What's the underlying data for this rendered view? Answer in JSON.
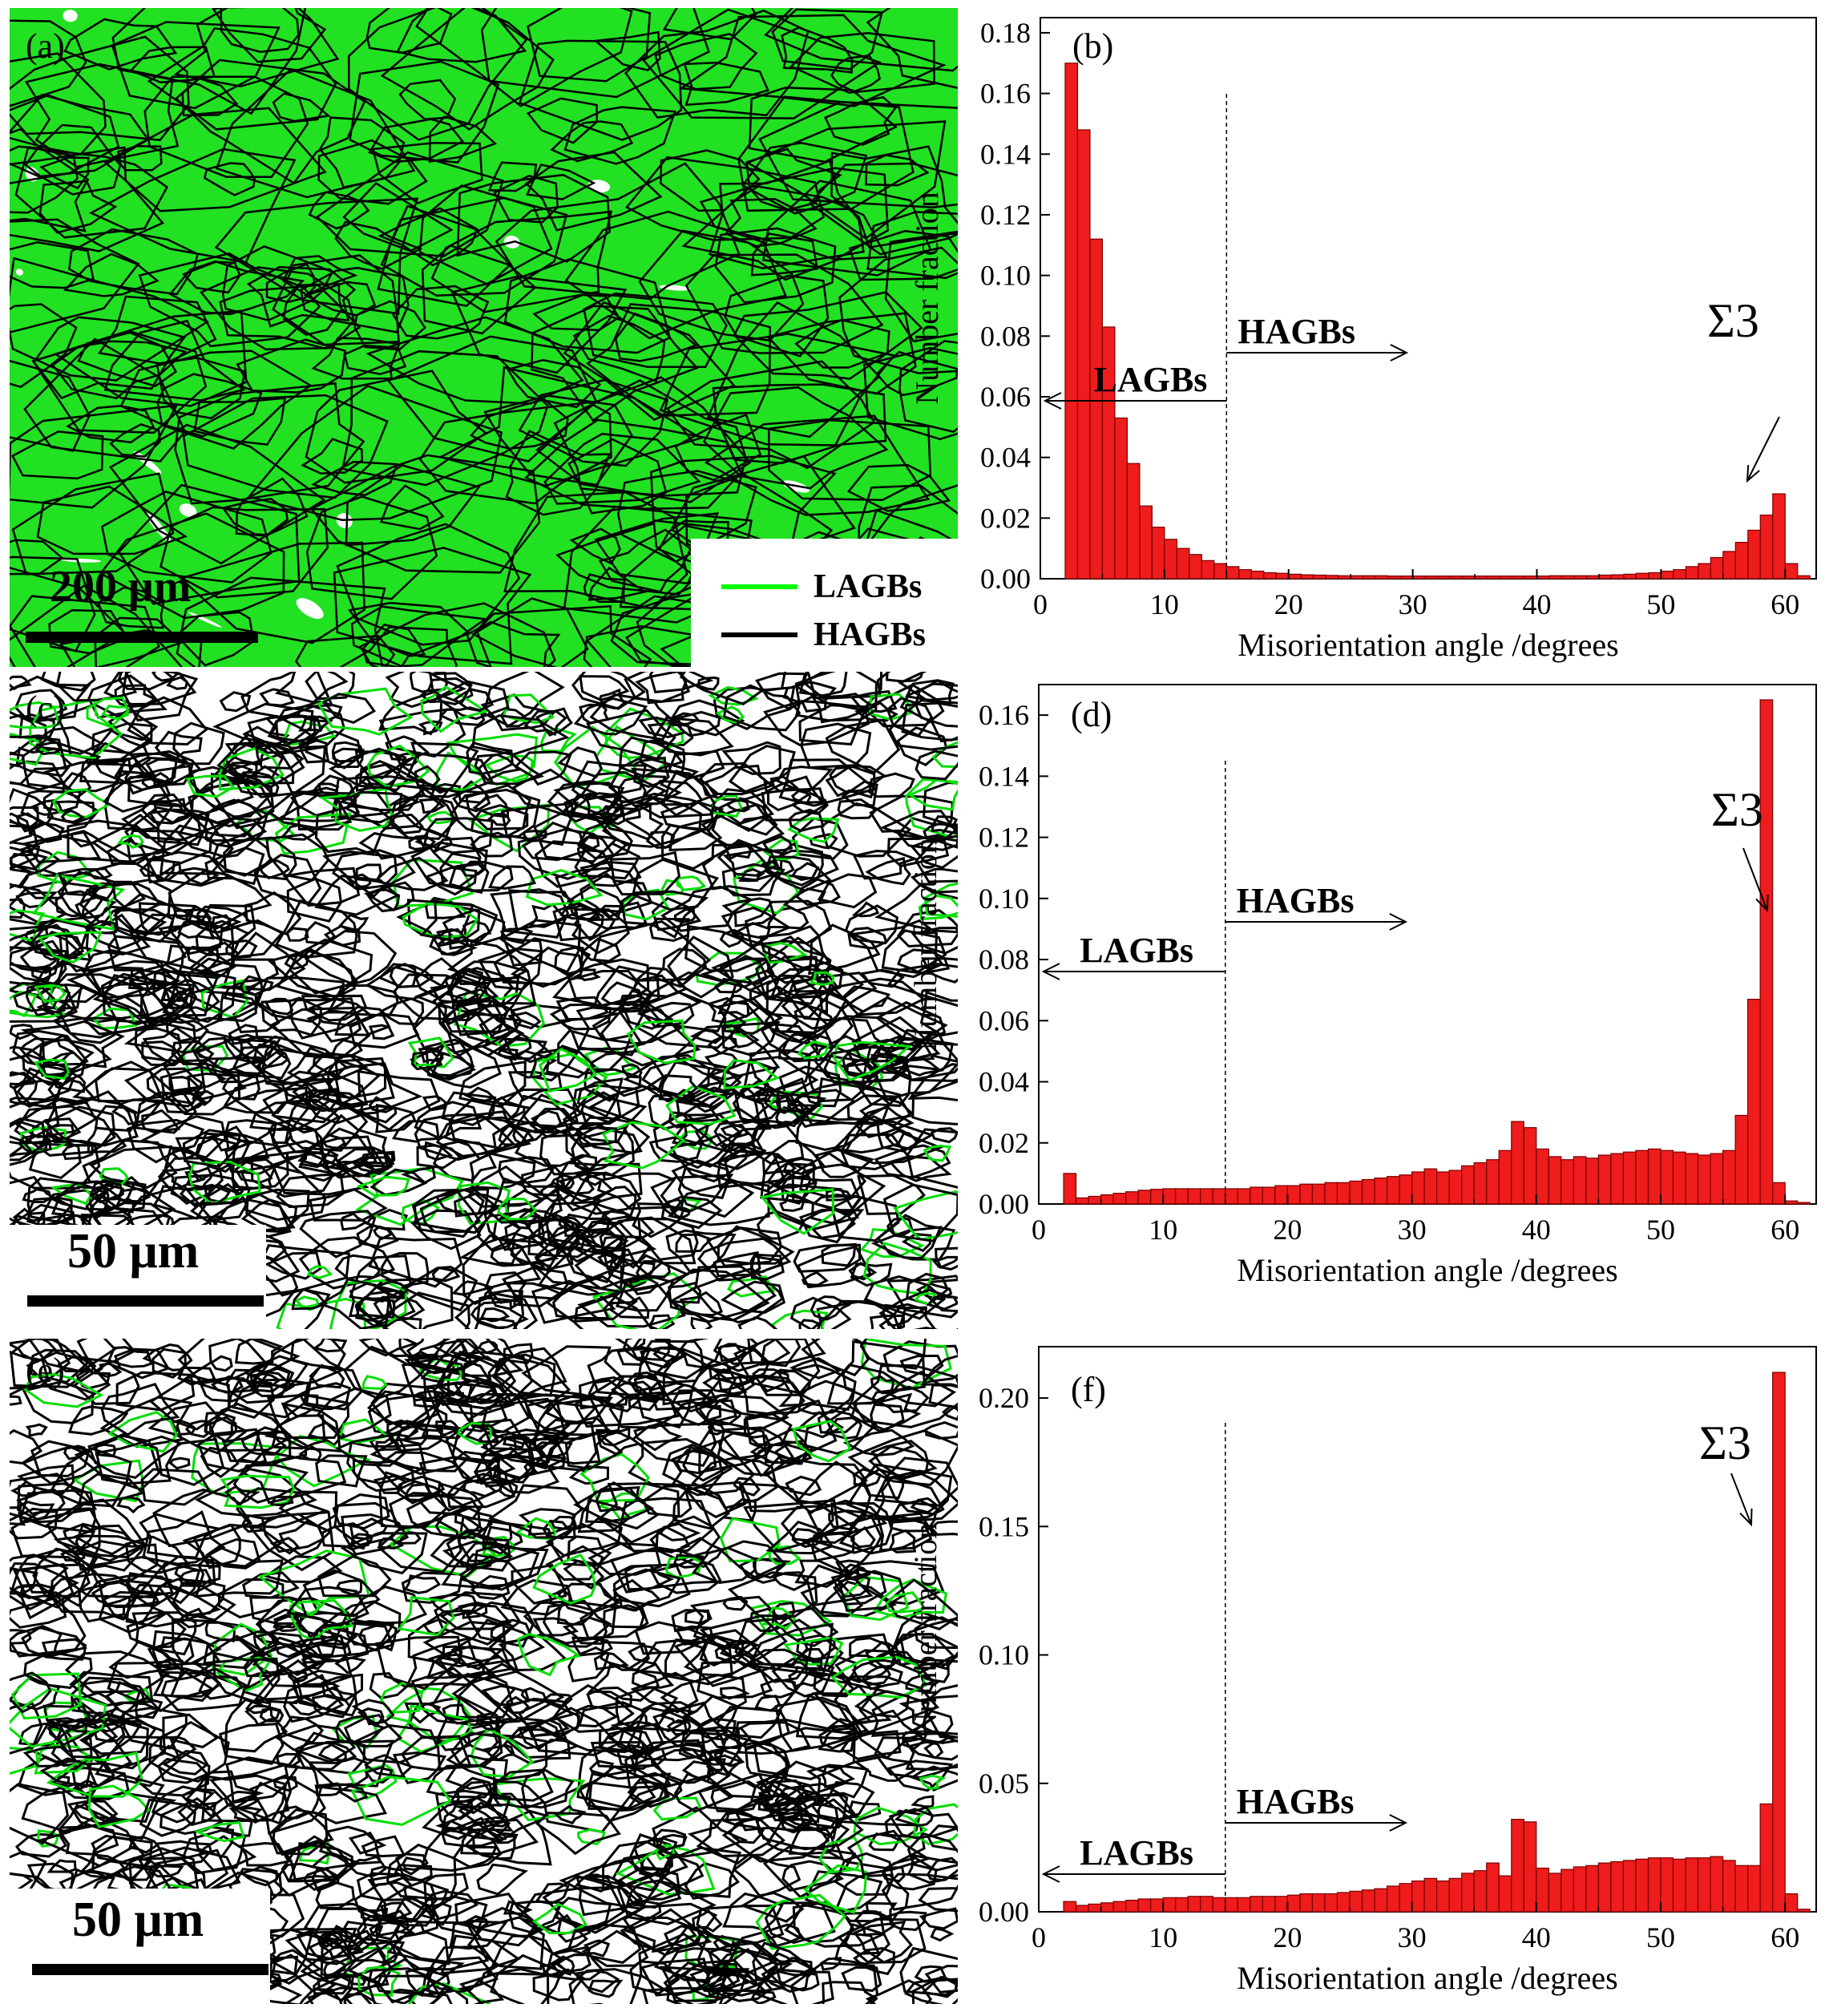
{
  "maps": [
    {
      "label": "(a)",
      "scale_text": "200 μm",
      "legend": [
        {
          "text": "LAGBs",
          "color": "#00ff00"
        },
        {
          "text": "HAGBs",
          "color": "#000000"
        }
      ],
      "background": "#22e022"
    },
    {
      "label": "(c)",
      "scale_text": "50 μm",
      "background": "#ffffff"
    },
    {
      "label": "(e)",
      "scale_text": "50 μm",
      "background": "#ffffff"
    }
  ],
  "colors": {
    "bar_fill": "#ee1c1c",
    "bar_stroke": "#7a0000",
    "lagb_line": "#00ff00",
    "hagb_line": "#000000"
  },
  "chart_data": [
    {
      "type": "bar",
      "panel_label": "(b)",
      "xlabel": "Misorientation angle /degrees",
      "ylabel": "Number fraction",
      "xlim": [
        0,
        62.5
      ],
      "ylim": [
        0,
        0.185
      ],
      "xticks": [
        0,
        10,
        20,
        30,
        40,
        50,
        60
      ],
      "yticks": [
        0.0,
        0.02,
        0.04,
        0.06,
        0.08,
        0.1,
        0.12,
        0.14,
        0.16,
        0.18
      ],
      "ytick_labels": [
        "0.00",
        "0.02",
        "0.04",
        "0.06",
        "0.08",
        "0.10",
        "0.12",
        "0.14",
        "0.16",
        "0.18"
      ],
      "bin_width": 1,
      "x": [
        2.5,
        3.5,
        4.5,
        5.5,
        6.5,
        7.5,
        8.5,
        9.5,
        10.5,
        11.5,
        12.5,
        13.5,
        14.5,
        15.5,
        16.5,
        17.5,
        18.5,
        19.5,
        20.5,
        21.5,
        22.5,
        23.5,
        24.5,
        25.5,
        26.5,
        27.5,
        28.5,
        29.5,
        30.5,
        31.5,
        32.5,
        33.5,
        34.5,
        35.5,
        36.5,
        37.5,
        38.5,
        39.5,
        40.5,
        41.5,
        42.5,
        43.5,
        44.5,
        45.5,
        46.5,
        47.5,
        48.5,
        49.5,
        50.5,
        51.5,
        52.5,
        53.5,
        54.5,
        55.5,
        56.5,
        57.5,
        58.5,
        59.5,
        60.5,
        61.5
      ],
      "values": [
        0.17,
        0.148,
        0.112,
        0.083,
        0.053,
        0.038,
        0.024,
        0.017,
        0.013,
        0.01,
        0.008,
        0.006,
        0.005,
        0.004,
        0.003,
        0.0025,
        0.002,
        0.0018,
        0.0015,
        0.0013,
        0.0012,
        0.0011,
        0.001,
        0.001,
        0.001,
        0.001,
        0.0009,
        0.0009,
        0.0009,
        0.0009,
        0.0009,
        0.0009,
        0.0009,
        0.0009,
        0.0009,
        0.0009,
        0.0009,
        0.0009,
        0.0009,
        0.001,
        0.001,
        0.001,
        0.001,
        0.0012,
        0.0013,
        0.0015,
        0.0018,
        0.002,
        0.0025,
        0.003,
        0.004,
        0.005,
        0.007,
        0.009,
        0.012,
        0.016,
        0.021,
        0.028,
        0.005,
        0.001
      ],
      "divider_x": 15,
      "annotations": {
        "lagbs": "LAGBs",
        "hagbs": "HAGBs",
        "sigma": "Σ3"
      }
    },
    {
      "type": "bar",
      "panel_label": "(d)",
      "xlabel": "Misorientation angle /degrees",
      "ylabel": "Number fraction",
      "xlim": [
        0,
        62.5
      ],
      "ylim": [
        0,
        0.17
      ],
      "xticks": [
        0,
        10,
        20,
        30,
        40,
        50,
        60
      ],
      "yticks": [
        0.0,
        0.02,
        0.04,
        0.06,
        0.08,
        0.1,
        0.12,
        0.14,
        0.16
      ],
      "ytick_labels": [
        "0.00",
        "0.02",
        "0.04",
        "0.06",
        "0.08",
        "0.10",
        "0.12",
        "0.14",
        "0.16"
      ],
      "bin_width": 1,
      "x": [
        2.5,
        3.5,
        4.5,
        5.5,
        6.5,
        7.5,
        8.5,
        9.5,
        10.5,
        11.5,
        12.5,
        13.5,
        14.5,
        15.5,
        16.5,
        17.5,
        18.5,
        19.5,
        20.5,
        21.5,
        22.5,
        23.5,
        24.5,
        25.5,
        26.5,
        27.5,
        28.5,
        29.5,
        30.5,
        31.5,
        32.5,
        33.5,
        34.5,
        35.5,
        36.5,
        37.5,
        38.5,
        39.5,
        40.5,
        41.5,
        42.5,
        43.5,
        44.5,
        45.5,
        46.5,
        47.5,
        48.5,
        49.5,
        50.5,
        51.5,
        52.5,
        53.5,
        54.5,
        55.5,
        56.5,
        57.5,
        58.5,
        59.5,
        60.5,
        61.5
      ],
      "values": [
        0.01,
        0.002,
        0.0025,
        0.003,
        0.0035,
        0.004,
        0.0045,
        0.0048,
        0.005,
        0.005,
        0.005,
        0.005,
        0.005,
        0.005,
        0.005,
        0.0055,
        0.0055,
        0.006,
        0.006,
        0.0065,
        0.0065,
        0.007,
        0.007,
        0.0075,
        0.008,
        0.0085,
        0.009,
        0.0095,
        0.0105,
        0.0115,
        0.0105,
        0.011,
        0.0125,
        0.0135,
        0.0145,
        0.0175,
        0.027,
        0.025,
        0.018,
        0.0155,
        0.0145,
        0.0155,
        0.015,
        0.016,
        0.0165,
        0.017,
        0.0175,
        0.018,
        0.0175,
        0.017,
        0.0165,
        0.016,
        0.0165,
        0.0175,
        0.029,
        0.067,
        0.165,
        0.007,
        0.001,
        0.0005
      ],
      "divider_x": 15,
      "annotations": {
        "lagbs": "LAGBs",
        "hagbs": "HAGBs",
        "sigma": "Σ3"
      }
    },
    {
      "type": "bar",
      "panel_label": "(f)",
      "xlabel": "Misorientation angle /degrees",
      "ylabel": "Number fraction",
      "xlim": [
        0,
        62.5
      ],
      "ylim": [
        0,
        0.22
      ],
      "xticks": [
        0,
        10,
        20,
        30,
        40,
        50,
        60
      ],
      "yticks": [
        0.0,
        0.05,
        0.1,
        0.15,
        0.2
      ],
      "ytick_labels": [
        "0.00",
        "0.05",
        "0.10",
        "0.15",
        "0.20"
      ],
      "bin_width": 1,
      "x": [
        2.5,
        3.5,
        4.5,
        5.5,
        6.5,
        7.5,
        8.5,
        9.5,
        10.5,
        11.5,
        12.5,
        13.5,
        14.5,
        15.5,
        16.5,
        17.5,
        18.5,
        19.5,
        20.5,
        21.5,
        22.5,
        23.5,
        24.5,
        25.5,
        26.5,
        27.5,
        28.5,
        29.5,
        30.5,
        31.5,
        32.5,
        33.5,
        34.5,
        35.5,
        36.5,
        37.5,
        38.5,
        39.5,
        40.5,
        41.5,
        42.5,
        43.5,
        44.5,
        45.5,
        46.5,
        47.5,
        48.5,
        49.5,
        50.5,
        51.5,
        52.5,
        53.5,
        54.5,
        55.5,
        56.5,
        57.5,
        58.5,
        59.5,
        60.5,
        61.5
      ],
      "values": [
        0.004,
        0.0025,
        0.003,
        0.0035,
        0.004,
        0.0045,
        0.005,
        0.005,
        0.0055,
        0.0055,
        0.006,
        0.006,
        0.0055,
        0.0055,
        0.0055,
        0.006,
        0.006,
        0.006,
        0.0065,
        0.007,
        0.007,
        0.007,
        0.0075,
        0.008,
        0.0085,
        0.009,
        0.01,
        0.011,
        0.012,
        0.013,
        0.012,
        0.013,
        0.015,
        0.016,
        0.019,
        0.014,
        0.036,
        0.035,
        0.017,
        0.015,
        0.0165,
        0.0175,
        0.018,
        0.019,
        0.0195,
        0.02,
        0.0205,
        0.021,
        0.021,
        0.0205,
        0.021,
        0.021,
        0.0215,
        0.02,
        0.018,
        0.018,
        0.042,
        0.21,
        0.007,
        0.001
      ],
      "divider_x": 15,
      "annotations": {
        "lagbs": "LAGBs",
        "hagbs": "HAGBs",
        "sigma": "Σ3"
      }
    }
  ]
}
